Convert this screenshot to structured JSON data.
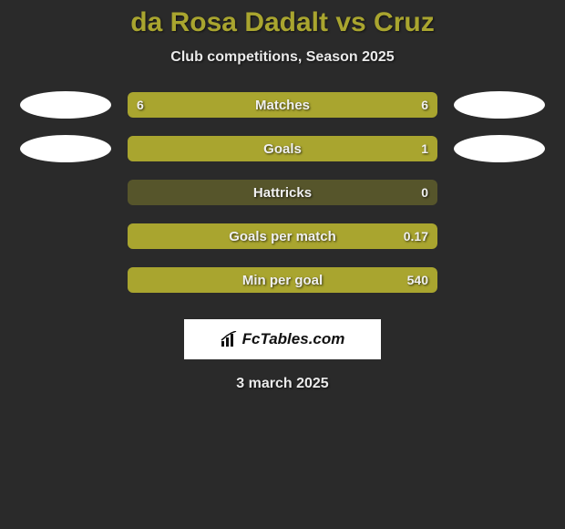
{
  "title": "da Rosa Dadalt vs Cruz",
  "subtitle": "Club competitions, Season 2025",
  "date": "3 march 2025",
  "logo_text": "FcTables.com",
  "colors": {
    "background": "#2a2a2a",
    "accent": "#a9a52f",
    "bar_track": "rgba(169,165,47,0.35)",
    "avatar_bg": "#ffffff",
    "text": "#f0f0f0"
  },
  "stats": [
    {
      "label": "Matches",
      "left_value": "6",
      "right_value": "6",
      "left_pct": 50,
      "right_pct": 50,
      "show_avatars": true
    },
    {
      "label": "Goals",
      "left_value": "",
      "right_value": "1",
      "left_pct": 0,
      "right_pct": 100,
      "show_avatars": true
    },
    {
      "label": "Hattricks",
      "left_value": "",
      "right_value": "0",
      "left_pct": 0,
      "right_pct": 0,
      "show_avatars": false
    },
    {
      "label": "Goals per match",
      "left_value": "",
      "right_value": "0.17",
      "left_pct": 0,
      "right_pct": 100,
      "show_avatars": false
    },
    {
      "label": "Min per goal",
      "left_value": "",
      "right_value": "540",
      "left_pct": 0,
      "right_pct": 100,
      "show_avatars": false
    }
  ]
}
